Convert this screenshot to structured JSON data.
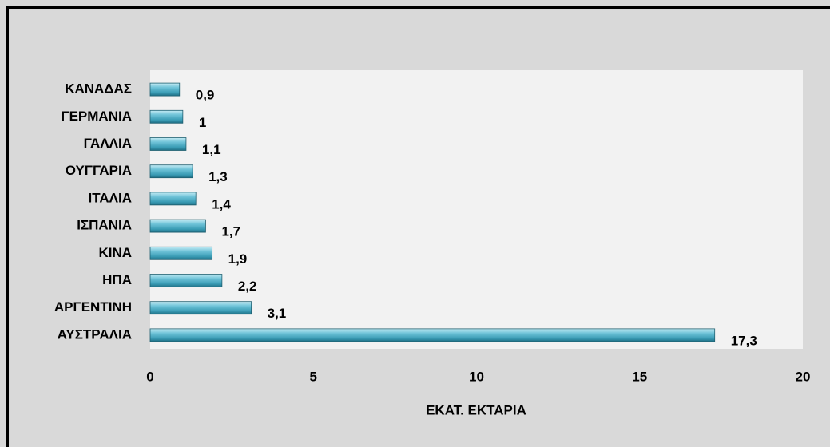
{
  "chart_data": {
    "type": "bar",
    "orientation": "horizontal",
    "x_label": "ΕΚΑΤ. ΕΚΤΑΡΙΑ",
    "categories": [
      "ΚΑΝΑΔΑΣ",
      "ΓΕΡΜΑΝΙΑ",
      "ΓΑΛΛΙΑ",
      "ΟΥΓΓΑΡΙΑ",
      "ΙΤΑΛΙΑ",
      "ΙΣΠΑΝΙΑ",
      "ΚΙΝΑ",
      "ΗΠΑ",
      "ΑΡΓΕΝΤΙΝΗ",
      "ΑΥΣΤΡΑΛΙΑ"
    ],
    "values": [
      0.9,
      1,
      1.1,
      1.3,
      1.4,
      1.7,
      1.9,
      2.2,
      3.1,
      17.3
    ],
    "value_labels": [
      "0,9",
      "1",
      "1,1",
      "1,3",
      "1,4",
      "1,7",
      "1,9",
      "2,2",
      "3,1",
      "17,3"
    ],
    "color": "#4bacc6",
    "xlim": [
      0,
      20
    ],
    "xticks": [
      0,
      5,
      10,
      15,
      20
    ],
    "grid": false
  }
}
